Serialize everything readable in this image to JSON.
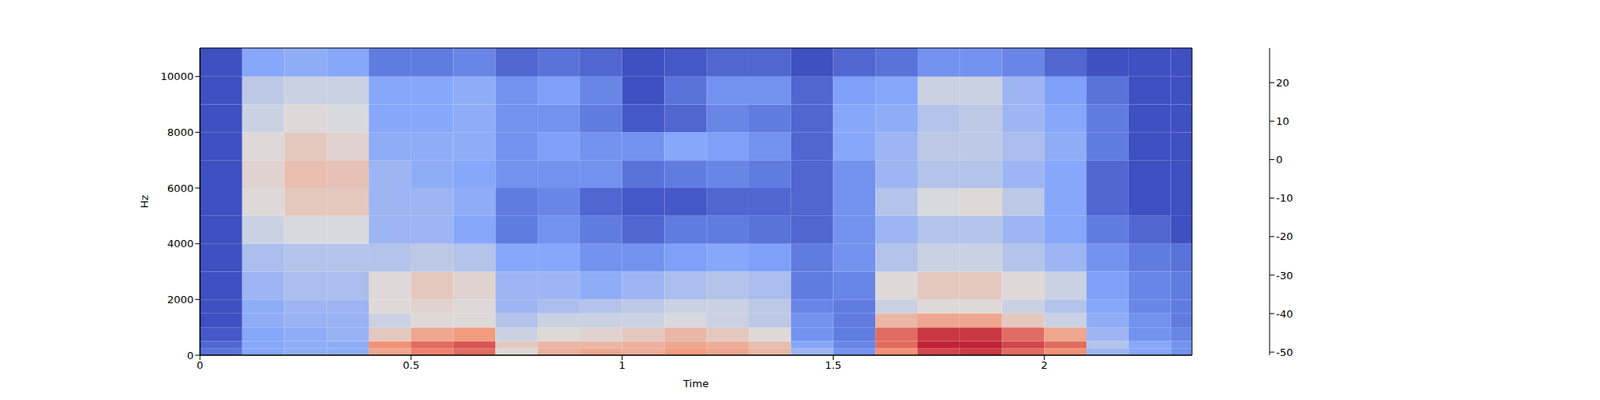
{
  "chart_data": {
    "type": "heatmap",
    "x_label": "Time",
    "y_label": "Hz",
    "xlim": [
      0,
      2.35
    ],
    "ylim": [
      0,
      11025
    ],
    "xticks": [
      0,
      0.5,
      1,
      1.5,
      2
    ],
    "yticks": [
      0,
      2000,
      4000,
      6000,
      8000,
      10000
    ],
    "grid": false,
    "time_edges": [
      0,
      0.1,
      0.2,
      0.3,
      0.4,
      0.5,
      0.6,
      0.7,
      0.8,
      0.9,
      1.0,
      1.1,
      1.2,
      1.3,
      1.4,
      1.5,
      1.6,
      1.7,
      1.8,
      1.9,
      2.0,
      2.1,
      2.2,
      2.3,
      2.35
    ],
    "freq_edges": [
      0,
      250,
      500,
      1000,
      1500,
      2000,
      3000,
      4000,
      5000,
      6000,
      7000,
      8000,
      9000,
      10000,
      11025
    ],
    "cells": [
      [
        -42,
        -30,
        -28,
        -28,
        5,
        12,
        15,
        -10,
        2,
        5,
        3,
        8,
        5,
        0,
        -25,
        -35,
        10,
        20,
        22,
        15,
        10,
        -25,
        -30,
        -35
      ],
      [
        -45,
        -30,
        -28,
        -28,
        10,
        15,
        18,
        -5,
        0,
        0,
        2,
        5,
        3,
        -2,
        -30,
        -38,
        15,
        25,
        25,
        20,
        15,
        -20,
        -30,
        -35
      ],
      [
        -48,
        -30,
        -28,
        -26,
        -5,
        5,
        8,
        -15,
        -10,
        -8,
        -5,
        0,
        -5,
        -10,
        -35,
        -40,
        15,
        22,
        22,
        15,
        5,
        -25,
        -35,
        -38
      ],
      [
        -50,
        -28,
        -26,
        -26,
        -15,
        -10,
        -10,
        -20,
        -15,
        -15,
        -15,
        -12,
        -15,
        -18,
        -35,
        -40,
        0,
        5,
        5,
        -5,
        -15,
        -28,
        -35,
        -40
      ],
      [
        -50,
        -28,
        -25,
        -25,
        -10,
        -8,
        -10,
        -25,
        -22,
        -20,
        -18,
        -15,
        -15,
        -18,
        -38,
        -40,
        -15,
        -10,
        -10,
        -15,
        -20,
        -30,
        -38,
        -40
      ],
      [
        -50,
        -25,
        -22,
        -22,
        -10,
        -5,
        -8,
        -25,
        -25,
        -28,
        -25,
        -22,
        -20,
        -22,
        -40,
        -38,
        -10,
        -5,
        -5,
        -10,
        -15,
        -32,
        -38,
        -40
      ],
      [
        -50,
        -22,
        -20,
        -20,
        -20,
        -18,
        -20,
        -30,
        -30,
        -35,
        -35,
        -32,
        -30,
        -32,
        -40,
        -35,
        -20,
        -15,
        -15,
        -20,
        -25,
        -35,
        -40,
        -42
      ],
      [
        -50,
        -15,
        -12,
        -12,
        -25,
        -25,
        -30,
        -40,
        -35,
        -40,
        -45,
        -40,
        -40,
        -42,
        -45,
        -35,
        -25,
        -20,
        -20,
        -25,
        -30,
        -40,
        -45,
        -50
      ],
      [
        -50,
        -10,
        -5,
        -5,
        -25,
        -25,
        -28,
        -40,
        -38,
        -45,
        -48,
        -48,
        -45,
        -45,
        -45,
        -35,
        -20,
        -12,
        -10,
        -18,
        -30,
        -45,
        -50,
        -50
      ],
      [
        -50,
        -8,
        -2,
        -3,
        -25,
        -28,
        -30,
        -35,
        -35,
        -35,
        -42,
        -40,
        -38,
        -40,
        -45,
        -35,
        -25,
        -20,
        -20,
        -25,
        -30,
        -45,
        -50,
        -50
      ],
      [
        -50,
        -10,
        -5,
        -8,
        -28,
        -28,
        -28,
        -35,
        -32,
        -35,
        -35,
        -30,
        -32,
        -35,
        -45,
        -30,
        -25,
        -18,
        -18,
        -22,
        -28,
        -40,
        -50,
        -50
      ],
      [
        -50,
        -15,
        -10,
        -12,
        -30,
        -30,
        -28,
        -35,
        -35,
        -40,
        -48,
        -45,
        -38,
        -40,
        -45,
        -30,
        -28,
        -20,
        -18,
        -25,
        -30,
        -40,
        -50,
        -50
      ],
      [
        -50,
        -18,
        -15,
        -15,
        -30,
        -30,
        -28,
        -35,
        -32,
        -38,
        -50,
        -42,
        -35,
        -35,
        -45,
        -32,
        -30,
        -15,
        -15,
        -25,
        -32,
        -42,
        -50,
        -50
      ],
      [
        -50,
        -30,
        -28,
        -30,
        -40,
        -40,
        -38,
        -45,
        -42,
        -45,
        -50,
        -48,
        -45,
        -45,
        -50,
        -45,
        -42,
        -35,
        -35,
        -38,
        -45,
        -50,
        -50,
        -50
      ]
    ],
    "colorbar": {
      "lim": [
        -50.8,
        29
      ],
      "ticks": [
        -50,
        -40,
        -30,
        -20,
        -10,
        0,
        10,
        20
      ]
    }
  }
}
